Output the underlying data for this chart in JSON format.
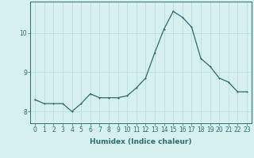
{
  "x": [
    0,
    1,
    2,
    3,
    4,
    5,
    6,
    7,
    8,
    9,
    10,
    11,
    12,
    13,
    14,
    15,
    16,
    17,
    18,
    19,
    20,
    21,
    22,
    23
  ],
  "y": [
    8.3,
    8.2,
    8.2,
    8.2,
    8.0,
    8.2,
    8.45,
    8.35,
    8.35,
    8.35,
    8.4,
    8.6,
    8.85,
    9.5,
    10.1,
    10.55,
    10.4,
    10.15,
    9.35,
    9.15,
    8.85,
    8.75,
    8.5,
    8.5
  ],
  "line_color": "#2d6b6b",
  "marker": "D",
  "marker_size": 2.0,
  "background_color": "#d6f0f0",
  "grid_color": "#b8dada",
  "xlabel": "Humidex (Indice chaleur)",
  "ylim": [
    7.7,
    10.8
  ],
  "xlim": [
    -0.5,
    23.5
  ],
  "yticks": [
    8,
    9,
    10
  ],
  "xticks": [
    0,
    1,
    2,
    3,
    4,
    5,
    6,
    7,
    8,
    9,
    10,
    11,
    12,
    13,
    14,
    15,
    16,
    17,
    18,
    19,
    20,
    21,
    22,
    23
  ],
  "tick_color": "#2d6b6b",
  "tick_fontsize": 5.5,
  "xlabel_fontsize": 6.5,
  "line_width": 0.9
}
